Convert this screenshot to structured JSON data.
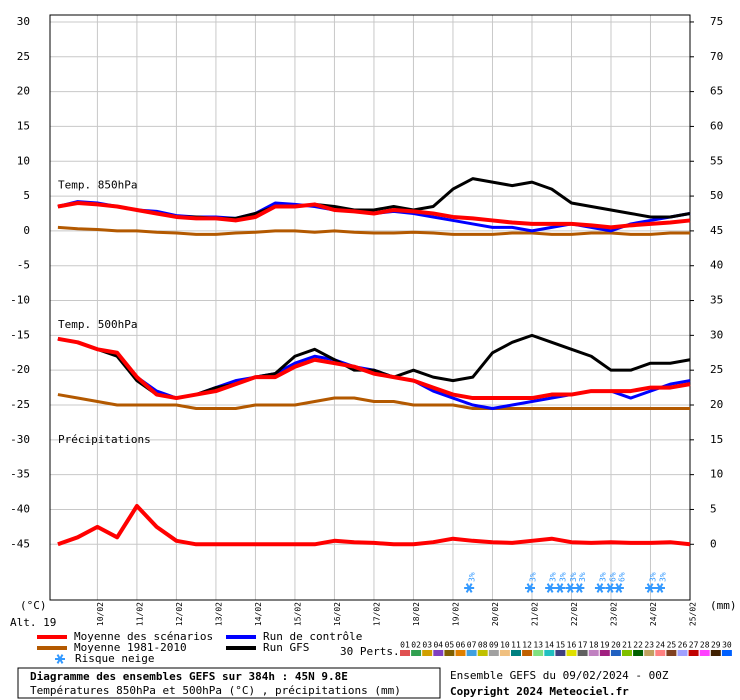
{
  "chart_data": {
    "type": "line",
    "title": "Diagramme des ensembles GEFS sur 384h : 45N 9.8E",
    "subtitle": "Températures 850hPa et 500hPa (°C) , précipitations (mm)",
    "run_info": "Ensemble GEFS du 09/02/2024 - 00Z",
    "copyright": "Copyright 2024 Meteociel.fr",
    "ylabel": "(°C)",
    "y2label": "(mm)",
    "altitude": "Alt. 19",
    "panel_labels": [
      "Temp. 850hPa",
      "Temp. 500hPa",
      "Précipitations"
    ],
    "grid": true,
    "xlim": [
      8.8,
      25
    ],
    "xticks": [
      {
        "value": 10,
        "label": "10/02"
      },
      {
        "value": 11,
        "label": "11/02"
      },
      {
        "value": 12,
        "label": "12/02"
      },
      {
        "value": 13,
        "label": "13/02"
      },
      {
        "value": 14,
        "label": "14/02"
      },
      {
        "value": 15,
        "label": "15/02"
      },
      {
        "value": 16,
        "label": "16/02"
      },
      {
        "value": 17,
        "label": "17/02"
      },
      {
        "value": 18,
        "label": "18/02"
      },
      {
        "value": 19,
        "label": "19/02"
      },
      {
        "value": 20,
        "label": "20/02"
      },
      {
        "value": 21,
        "label": "21/02"
      },
      {
        "value": 22,
        "label": "22/02"
      },
      {
        "value": 23,
        "label": "23/02"
      },
      {
        "value": 24,
        "label": "24/02"
      },
      {
        "value": 25,
        "label": "25/02"
      }
    ],
    "ylim": [
      -53,
      31
    ],
    "yticks": [
      30,
      25,
      20,
      15,
      10,
      5,
      0,
      -5,
      -10,
      -15,
      -20,
      -25,
      -30,
      -35,
      -40,
      -45
    ],
    "y2lim": [
      -8,
      76
    ],
    "y2ticks": [
      75,
      70,
      65,
      60,
      55,
      50,
      45,
      40,
      35,
      30,
      25,
      20,
      15,
      10,
      5,
      0
    ],
    "x": [
      9,
      9.5,
      10,
      10.5,
      11,
      11.5,
      12,
      12.5,
      13,
      13.5,
      14,
      14.5,
      15,
      15.5,
      16,
      16.5,
      17,
      17.5,
      18,
      18.5,
      19,
      19.5,
      20,
      20.5,
      21,
      21.5,
      22,
      22.5,
      23,
      23.5,
      24,
      24.5,
      25
    ],
    "series": [
      {
        "name": "Moyenne des scénarios",
        "color": "#ff0000",
        "width": 4,
        "t850": [
          3.5,
          4,
          3.8,
          3.5,
          3,
          2.5,
          2,
          1.8,
          1.8,
          1.5,
          2,
          3.5,
          3.5,
          3.8,
          3,
          2.8,
          2.5,
          3,
          2.8,
          2.5,
          2,
          1.8,
          1.5,
          1.2,
          1,
          1,
          1,
          0.8,
          0.5,
          0.8,
          1,
          1.2,
          1.5
        ],
        "t500": [
          -15.5,
          -16,
          -17,
          -17.5,
          -21,
          -23.5,
          -24,
          -23.5,
          -23,
          -22,
          -21,
          -21,
          -19.5,
          -18.5,
          -19,
          -19.5,
          -20.5,
          -21,
          -21.5,
          -22.5,
          -23.5,
          -24,
          -24,
          -24,
          -24,
          -23.5,
          -23.5,
          -23,
          -23,
          -23,
          -22.5,
          -22.5,
          -22
        ],
        "precip": [
          0,
          1,
          2.5,
          1,
          5.5,
          2.5,
          0.5,
          0,
          0,
          0,
          0,
          0,
          0,
          0,
          0.5,
          0.3,
          0.2,
          0,
          0,
          0.3,
          0.8,
          0.5,
          0.3,
          0.2,
          0.5,
          0.8,
          0.3,
          0.2,
          0.3,
          0.2,
          0.2,
          0.3,
          0
        ]
      },
      {
        "name": "Moyenne 1981-2010",
        "color": "#b35900",
        "width": 3,
        "t850": [
          0.5,
          0.3,
          0.2,
          0,
          0,
          -0.2,
          -0.3,
          -0.5,
          -0.5,
          -0.3,
          -0.2,
          0,
          0,
          -0.2,
          0,
          -0.2,
          -0.3,
          -0.3,
          -0.2,
          -0.3,
          -0.5,
          -0.5,
          -0.5,
          -0.3,
          -0.3,
          -0.5,
          -0.5,
          -0.3,
          -0.3,
          -0.5,
          -0.5,
          -0.3,
          -0.3
        ],
        "t500": [
          -23.5,
          -24,
          -24.5,
          -25,
          -25,
          -25,
          -25,
          -25.5,
          -25.5,
          -25.5,
          -25,
          -25,
          -25,
          -24.5,
          -24,
          -24,
          -24.5,
          -24.5,
          -25,
          -25,
          -25,
          -25.5,
          -25.5,
          -25.5,
          -25.5,
          -25.5,
          -25.5,
          -25.5,
          -25.5,
          -25.5,
          -25.5,
          -25.5,
          -25.5
        ]
      },
      {
        "name": "Run de contrôle",
        "color": "#0000ff",
        "width": 3,
        "t850": [
          3.5,
          4.2,
          4,
          3.5,
          3,
          2.8,
          2.2,
          2,
          2,
          1.8,
          2.5,
          4,
          3.8,
          3.5,
          3,
          3,
          2.5,
          2.8,
          2.5,
          2,
          1.5,
          1,
          0.5,
          0.5,
          0,
          0.5,
          1,
          0.5,
          0,
          1,
          1.5,
          2,
          2.5
        ],
        "t500": [
          -15.5,
          -16,
          -17,
          -17.5,
          -21,
          -23,
          -24,
          -23.5,
          -22.5,
          -21.5,
          -21,
          -20.5,
          -19,
          -18,
          -18.5,
          -19.5,
          -20,
          -21,
          -21.5,
          -23,
          -24,
          -25,
          -25.5,
          -25,
          -24.5,
          -24,
          -23.5,
          -23,
          -23,
          -24,
          -23,
          -22,
          -21.5
        ]
      },
      {
        "name": "Run GFS",
        "color": "#000000",
        "width": 3,
        "t850": [
          3.5,
          4,
          3.8,
          3.5,
          3,
          2.5,
          2,
          2,
          1.8,
          1.8,
          2.5,
          3.5,
          3.5,
          3.8,
          3.5,
          3,
          3,
          3.5,
          3,
          3.5,
          6,
          7.5,
          7,
          6.5,
          7,
          6,
          4,
          3.5,
          3,
          2.5,
          2,
          2,
          2.5
        ],
        "t500": [
          -15.5,
          -16,
          -17,
          -18,
          -21.5,
          -23.5,
          -24,
          -23.5,
          -22.5,
          -22,
          -21,
          -20.5,
          -18,
          -17,
          -18.5,
          -20,
          -20,
          -21,
          -20,
          -21,
          -21.5,
          -21,
          -17.5,
          -16,
          -15,
          -16,
          -17,
          -18,
          -20,
          -20,
          -19,
          -19,
          -18.5
        ]
      }
    ],
    "snow_risk": {
      "name": "Risque neige",
      "x": [
        19.41,
        20.95,
        21.46,
        21.71,
        21.97,
        22.2,
        22.72,
        22.98,
        23.2,
        23.99,
        24.24
      ],
      "values": [
        3,
        3,
        3,
        3,
        3,
        3,
        3,
        6,
        6,
        3,
        3
      ],
      "value_labels": [
        "3%",
        "3%",
        "3%",
        "3%",
        "3%",
        "3%",
        "3%",
        "6%",
        "6%",
        "3%",
        "3%"
      ]
    },
    "perturbations_label": "30 Perts.",
    "perturbations": [
      {
        "label": "01",
        "color": "#e05050"
      },
      {
        "label": "02",
        "color": "#30a050"
      },
      {
        "label": "03",
        "color": "#d0a000"
      },
      {
        "label": "04",
        "color": "#8040c0"
      },
      {
        "label": "05",
        "color": "#806000"
      },
      {
        "label": "06",
        "color": "#e08000"
      },
      {
        "label": "07",
        "color": "#40a0e0"
      },
      {
        "label": "08",
        "color": "#c0c000"
      },
      {
        "label": "09",
        "color": "#a0a0a0"
      },
      {
        "label": "10",
        "color": "#f0c080"
      },
      {
        "label": "11",
        "color": "#008080"
      },
      {
        "label": "12",
        "color": "#c06000"
      },
      {
        "label": "13",
        "color": "#80e080"
      },
      {
        "label": "14",
        "color": "#20c0c0"
      },
      {
        "label": "15",
        "color": "#404080"
      },
      {
        "label": "16",
        "color": "#e0e000"
      },
      {
        "label": "17",
        "color": "#606060"
      },
      {
        "label": "18",
        "color": "#c080c0"
      },
      {
        "label": "19",
        "color": "#a02080"
      },
      {
        "label": "20",
        "color": "#2060c0"
      },
      {
        "label": "21",
        "color": "#80c000"
      },
      {
        "label": "22",
        "color": "#006000"
      },
      {
        "label": "23",
        "color": "#c0a060"
      },
      {
        "label": "24",
        "color": "#ff8080"
      },
      {
        "label": "25",
        "color": "#804020"
      },
      {
        "label": "26",
        "color": "#a0a0ff"
      },
      {
        "label": "27",
        "color": "#c00000"
      },
      {
        "label": "28",
        "color": "#ff40ff"
      },
      {
        "label": "29",
        "color": "#402000"
      },
      {
        "label": "30",
        "color": "#0060ff"
      }
    ]
  }
}
